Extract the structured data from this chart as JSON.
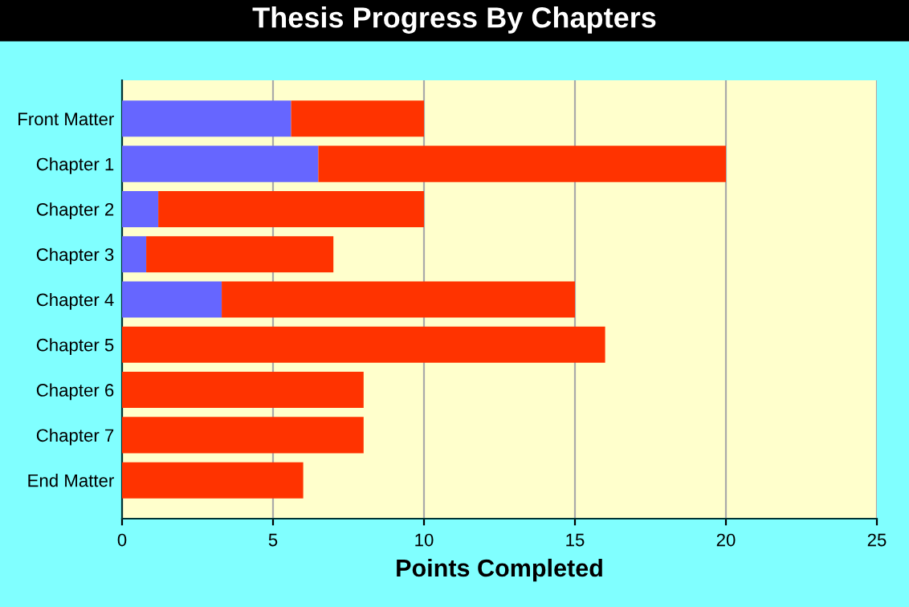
{
  "chart_data": {
    "type": "bar",
    "orientation": "horizontal",
    "stacked": true,
    "title": "Thesis Progress By Chapters",
    "xlabel": "Points Completed",
    "categories": [
      "Front Matter",
      "Chapter 1",
      "Chapter 2",
      "Chapter 3",
      "Chapter 4",
      "Chapter 5",
      "Chapter 6",
      "Chapter 7",
      "End Matter"
    ],
    "series": [
      {
        "color": "#6666ff",
        "values": [
          5.6,
          6.5,
          1.2,
          0.8,
          3.3,
          0,
          0,
          0,
          0
        ]
      },
      {
        "color": "#ff3300",
        "values": [
          4.4,
          13.5,
          8.8,
          6.2,
          11.7,
          16,
          8,
          8,
          6
        ]
      }
    ],
    "xlim": [
      0,
      25
    ],
    "xticks": [
      0,
      5,
      10,
      15,
      20,
      25
    ],
    "grid": "x"
  }
}
